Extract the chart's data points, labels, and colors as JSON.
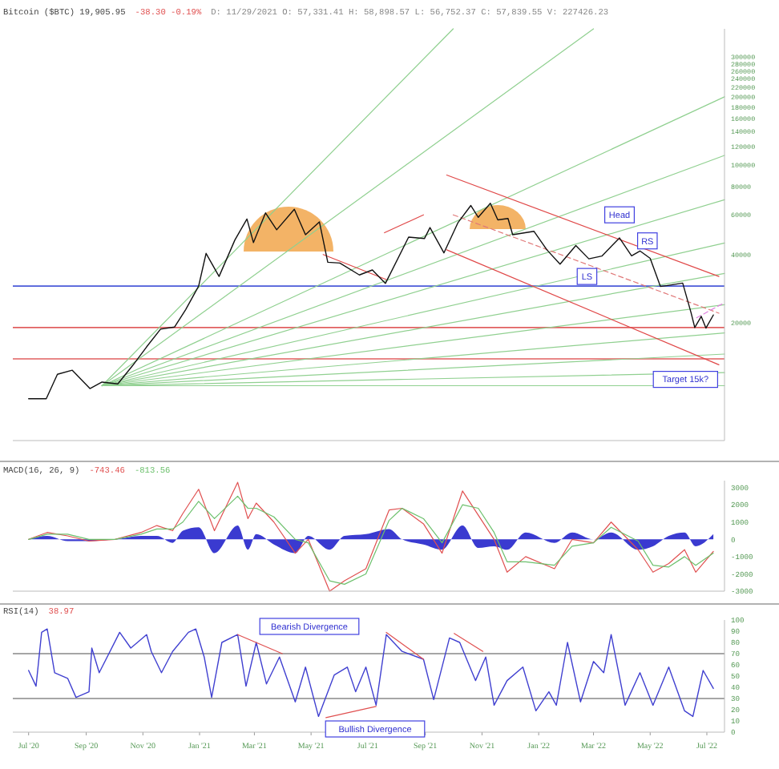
{
  "chart_data": [
    {
      "type": "line",
      "title": "Bitcoin ($BTC) 19,905.95",
      "log": true,
      "xlim": [
        "2020-06-14",
        "2022-07-20"
      ],
      "ylim": [
        6000,
        400000
      ],
      "tick_labels": "y",
      "yticks": [
        20000,
        40000,
        60000,
        80000,
        100000,
        120000,
        140000,
        160000,
        180000,
        200000,
        220000,
        240000,
        260000,
        280000,
        300000
      ],
      "annotations": [
        "-38.30 -0.19%",
        "D: 11/29/2021 O: 57,331.41 H: 58,898.57 L: 56,752.37 C: 57,839.55 V: 227426.23",
        {
          "text": "Head",
          "x": "2022-03-29",
          "y": 60000
        },
        {
          "text": "LS",
          "x": "2022-02-22",
          "y": 32000
        },
        {
          "text": "RS",
          "x": "2022-04-28",
          "y": 46000
        },
        {
          "text": "Target 15k?",
          "x": "2022-06-08",
          "y": 11200
        }
      ],
      "ref_lines": [
        {
          "axis": "y",
          "value": 29000,
          "color": "#4a5ad8"
        },
        {
          "axis": "y",
          "value": 19000,
          "color": "#e06060"
        },
        {
          "axis": "y",
          "value": 13800,
          "color": "#e06060"
        }
      ],
      "series": [
        {
          "type": "line",
          "color": "#90d090",
          "x": [
            "2020-09-18",
            "2021-10-01"
          ],
          "values": [
            10500,
            400000
          ]
        },
        {
          "type": "line",
          "color": "#90d090",
          "x": [
            "2020-09-18",
            "2022-03-01"
          ],
          "values": [
            10500,
            400000
          ]
        },
        {
          "type": "line",
          "color": "#90d090",
          "x": [
            "2020-09-18",
            "2022-07-20"
          ],
          "values": [
            10500,
            200000
          ]
        },
        {
          "type": "line",
          "color": "#90d090",
          "x": [
            "2020-09-18",
            "2022-07-20"
          ],
          "values": [
            10500,
            110000
          ]
        },
        {
          "type": "line",
          "color": "#90d090",
          "x": [
            "2020-09-18",
            "2022-07-20"
          ],
          "values": [
            10500,
            70000
          ]
        },
        {
          "type": "line",
          "color": "#90d090",
          "x": [
            "2020-09-18",
            "2022-07-20"
          ],
          "values": [
            10500,
            45000
          ]
        },
        {
          "type": "line",
          "color": "#90d090",
          "x": [
            "2020-09-18",
            "2022-07-20"
          ],
          "values": [
            10500,
            33000
          ]
        },
        {
          "type": "line",
          "color": "#90d090",
          "x": [
            "2020-09-18",
            "2022-07-20"
          ],
          "values": [
            10500,
            24000
          ]
        },
        {
          "type": "line",
          "color": "#90d090",
          "x": [
            "2020-09-18",
            "2022-07-20"
          ],
          "values": [
            10500,
            18000
          ]
        },
        {
          "type": "line",
          "color": "#90d090",
          "x": [
            "2020-09-18",
            "2022-07-20"
          ],
          "values": [
            10500,
            14500
          ]
        },
        {
          "type": "line",
          "color": "#90d090",
          "x": [
            "2020-09-18",
            "2022-07-20"
          ],
          "values": [
            10500,
            12000
          ]
        },
        {
          "type": "line",
          "color": "#90d090",
          "x": [
            "2020-09-18",
            "2022-07-20"
          ],
          "values": [
            10500,
            10500
          ]
        },
        {
          "type": "line",
          "color": "#e04848",
          "x": [
            "2021-09-24",
            "2022-07-14"
          ],
          "values": [
            90000,
            32000
          ]
        },
        {
          "type": "line",
          "color": "#e04848",
          "x": [
            "2021-09-24",
            "2022-07-14"
          ],
          "values": [
            42000,
            13000
          ]
        },
        {
          "type": "line",
          "color": "#e07878",
          "line_style": "dashed",
          "x": [
            "2021-10-01",
            "2022-07-14"
          ],
          "values": [
            60000,
            22000
          ]
        },
        {
          "type": "line",
          "color": "#e080e0",
          "line_style": "dashed",
          "x": [
            "2022-06-20",
            "2022-07-20"
          ],
          "values": [
            21000,
            24500
          ]
        },
        {
          "type": "line",
          "color": "#e04848",
          "x": [
            "2021-07-19",
            "2021-08-30"
          ],
          "values": [
            50000,
            60000
          ]
        },
        {
          "type": "line",
          "color": "#e04848",
          "x": [
            "2021-05-14",
            "2021-07-21"
          ],
          "values": [
            40000,
            31000
          ]
        },
        {
          "color": "#111111",
          "x": [
            "2020-07-01",
            "2020-07-20",
            "2020-08-01",
            "2020-08-17",
            "2020-09-05",
            "2020-09-18",
            "2020-10-05",
            "2020-10-21",
            "2020-11-05",
            "2020-11-20",
            "2020-12-05",
            "2020-12-17",
            "2020-12-31",
            "2021-01-08",
            "2021-01-22",
            "2021-02-08",
            "2021-02-21",
            "2021-02-28",
            "2021-03-13",
            "2021-03-25",
            "2021-04-13",
            "2021-04-25",
            "2021-05-10",
            "2021-05-19",
            "2021-06-01",
            "2021-06-22",
            "2021-07-06",
            "2021-07-20",
            "2021-08-14",
            "2021-08-31",
            "2021-09-06",
            "2021-09-21",
            "2021-10-06",
            "2021-10-20",
            "2021-10-28",
            "2021-11-10",
            "2021-11-18",
            "2021-11-29",
            "2021-12-04",
            "2021-12-27",
            "2022-01-10",
            "2022-01-24",
            "2022-02-10",
            "2022-02-24",
            "2022-03-10",
            "2022-03-29",
            "2022-04-11",
            "2022-04-20",
            "2022-05-01",
            "2022-05-12",
            "2022-05-20",
            "2022-06-05",
            "2022-06-14",
            "2022-06-18",
            "2022-06-25",
            "2022-06-30",
            "2022-07-08"
          ],
          "values": [
            9200,
            9200,
            11800,
            12300,
            10200,
            10900,
            10700,
            12900,
            15600,
            18700,
            19100,
            22800,
            29000,
            40500,
            32000,
            46400,
            57500,
            45200,
            61200,
            51500,
            63500,
            49000,
            55800,
            37000,
            36700,
            32500,
            34200,
            29800,
            47800,
            47100,
            52700,
            40700,
            55300,
            66000,
            58500,
            67500,
            57000,
            57800,
            49000,
            50700,
            41900,
            36300,
            43900,
            38300,
            39400,
            47400,
            39500,
            41500,
            38500,
            28900,
            29200,
            29900,
            22100,
            19000,
            21300,
            18900,
            21600
          ]
        }
      ]
    },
    {
      "type": "line",
      "title": "MACD(16, 26, 9)",
      "xlim": [
        "2020-06-14",
        "2022-07-20"
      ],
      "ylim": [
        -3000,
        3400
      ],
      "tick_labels": "y",
      "yticks": [
        -3000,
        -2000,
        -1000,
        0,
        1000,
        2000,
        3000
      ],
      "annotations": [
        "-743.46",
        "-813.56"
      ],
      "x": [
        "2020-07-01",
        "2020-07-21",
        "2020-08-12",
        "2020-09-04",
        "2020-10-02",
        "2020-10-30",
        "2020-11-16",
        "2020-12-03",
        "2020-12-14",
        "2020-12-31",
        "2021-01-17",
        "2021-02-11",
        "2021-02-22",
        "2021-03-03",
        "2021-03-22",
        "2021-04-14",
        "2021-04-28",
        "2021-05-21",
        "2021-06-06",
        "2021-06-29",
        "2021-07-24",
        "2021-08-07",
        "2021-08-30",
        "2021-09-19",
        "2021-10-11",
        "2021-10-28",
        "2021-11-14",
        "2021-11-28",
        "2021-12-18",
        "2022-01-18",
        "2022-02-06",
        "2022-03-01",
        "2022-03-20",
        "2022-04-18",
        "2022-05-04",
        "2022-05-21",
        "2022-06-07",
        "2022-06-19",
        "2022-07-08"
      ],
      "series": [
        {
          "type": "area",
          "color": "#3a3ad0",
          "values": [
            0,
            200,
            -100,
            -100,
            0,
            200,
            200,
            -200,
            500,
            700,
            -800,
            800,
            -600,
            300,
            -300,
            -800,
            200,
            -600,
            200,
            300,
            600,
            0,
            -300,
            -600,
            800,
            -500,
            -400,
            -600,
            400,
            -200,
            400,
            0,
            400,
            -600,
            -400,
            200,
            400,
            -400,
            300
          ]
        },
        {
          "color": "#e05050",
          "values": [
            0,
            400,
            200,
            -100,
            0,
            400,
            800,
            500,
            1500,
            2900,
            500,
            3300,
            1200,
            2100,
            1000,
            -800,
            0,
            -3000,
            -2400,
            -1700,
            1700,
            1800,
            900,
            -800,
            2800,
            1400,
            0,
            -1900,
            -1000,
            -1700,
            0,
            -200,
            1000,
            -600,
            -1900,
            -1400,
            -600,
            -1900,
            -700
          ]
        },
        {
          "color": "#6cc06c",
          "values": [
            0,
            300,
            300,
            0,
            0,
            300,
            600,
            600,
            1000,
            2200,
            1200,
            2500,
            1800,
            1800,
            1300,
            0,
            -200,
            -2400,
            -2600,
            -2000,
            1100,
            1800,
            1200,
            -200,
            2000,
            1800,
            400,
            -1300,
            -1300,
            -1500,
            -400,
            -200,
            700,
            -100,
            -1500,
            -1600,
            -1000,
            -1500,
            -800
          ]
        }
      ]
    },
    {
      "type": "line",
      "title": "RSI(14)",
      "xlim": [
        "2020-06-14",
        "2022-07-20"
      ],
      "ylim": [
        0,
        100
      ],
      "yticks": [
        0,
        10,
        20,
        30,
        40,
        50,
        60,
        70,
        80,
        90,
        100
      ],
      "xticks": [
        {
          "value": "2020-07-01",
          "label": "Jul '20"
        },
        {
          "value": "2020-09-01",
          "label": "Sep '20"
        },
        {
          "value": "2020-11-01",
          "label": "Nov '20"
        },
        {
          "value": "2021-01-01",
          "label": "Jan '21"
        },
        {
          "value": "2021-03-01",
          "label": "Mar '21"
        },
        {
          "value": "2021-05-01",
          "label": "May '21"
        },
        {
          "value": "2021-07-01",
          "label": "Jul '21"
        },
        {
          "value": "2021-09-01",
          "label": "Sep '21"
        },
        {
          "value": "2021-11-01",
          "label": "Nov '21"
        },
        {
          "value": "2022-01-01",
          "label": "Jan '22"
        },
        {
          "value": "2022-03-01",
          "label": "Mar '22"
        },
        {
          "value": "2022-05-01",
          "label": "May '22"
        },
        {
          "value": "2022-07-01",
          "label": "Jul '22"
        }
      ],
      "annotations": [
        "38.97",
        "Bearish Divergence",
        "Bullish Divergence"
      ],
      "ref_lines": [
        {
          "axis": "y",
          "value": 70,
          "color": "#888888"
        },
        {
          "axis": "y",
          "value": 30,
          "color": "#888888"
        }
      ],
      "series": [
        {
          "color": "#4040d0",
          "x": [
            "2020-07-01",
            "2020-07-09",
            "2020-07-15",
            "2020-07-21",
            "2020-07-29",
            "2020-08-12",
            "2020-08-21",
            "2020-09-04",
            "2020-09-07",
            "2020-09-15",
            "2020-10-07",
            "2020-10-19",
            "2020-11-05",
            "2020-11-10",
            "2020-11-21",
            "2020-12-03",
            "2020-12-20",
            "2020-12-28",
            "2021-01-06",
            "2021-01-14",
            "2021-01-25",
            "2021-02-11",
            "2021-02-20",
            "2021-03-03",
            "2021-03-14",
            "2021-03-28",
            "2021-04-14",
            "2021-04-25",
            "2021-05-09",
            "2021-05-26",
            "2021-06-09",
            "2021-06-18",
            "2021-06-29",
            "2021-07-10",
            "2021-07-21",
            "2021-08-07",
            "2021-08-30",
            "2021-09-10",
            "2021-09-27",
            "2021-10-08",
            "2021-10-25",
            "2021-11-05",
            "2021-11-14",
            "2021-11-28",
            "2021-12-15",
            "2021-12-29",
            "2022-01-12",
            "2022-01-20",
            "2022-02-01",
            "2022-02-15",
            "2022-03-01",
            "2022-03-12",
            "2022-03-20",
            "2022-04-04",
            "2022-04-20",
            "2022-05-04",
            "2022-05-21",
            "2022-06-07",
            "2022-06-16",
            "2022-06-27",
            "2022-07-08"
          ],
          "values": [
            55,
            41,
            89,
            92,
            53,
            48,
            31,
            36,
            75,
            53,
            89,
            75,
            87,
            72,
            53,
            72,
            89,
            92,
            67,
            31,
            80,
            87,
            41,
            80,
            43,
            67,
            27,
            58,
            14,
            51,
            58,
            36,
            58,
            24,
            87,
            72,
            65,
            29,
            84,
            80,
            46,
            67,
            24,
            46,
            58,
            19,
            36,
            24,
            80,
            27,
            63,
            53,
            87,
            24,
            53,
            24,
            58,
            19,
            14,
            55,
            39
          ]
        },
        {
          "color": "#e05050",
          "x": [
            "2021-02-11",
            "2021-03-31"
          ],
          "values": [
            87,
            70
          ]
        },
        {
          "color": "#e05050",
          "x": [
            "2021-07-21",
            "2021-08-30"
          ],
          "values": [
            89,
            65
          ]
        },
        {
          "color": "#e05050",
          "x": [
            "2021-10-02",
            "2021-11-02"
          ],
          "values": [
            88,
            72
          ]
        },
        {
          "color": "#e05050",
          "x": [
            "2021-05-17",
            "2021-07-10"
          ],
          "values": [
            13,
            23
          ]
        }
      ]
    }
  ]
}
